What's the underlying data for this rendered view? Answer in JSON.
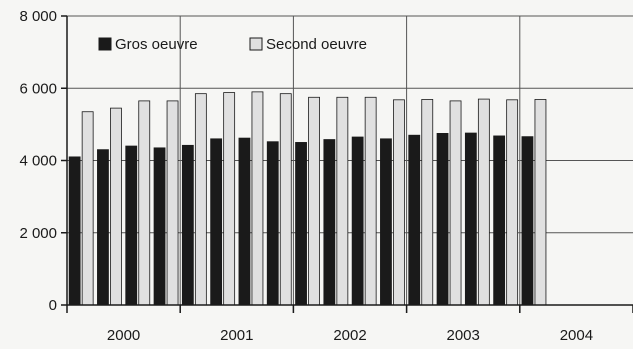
{
  "chart_data": {
    "type": "bar",
    "title": "",
    "xlabel": "",
    "ylabel": "",
    "ylim": [
      0,
      8000
    ],
    "yticks": [
      0,
      2000,
      4000,
      6000,
      8000
    ],
    "ytick_labels": [
      "0",
      "2 000",
      "4 000",
      "6 000",
      "8 000"
    ],
    "grid": true,
    "legend_position": "top-left",
    "quarters_per_year": 4,
    "year_labels": [
      "2000",
      "2001",
      "2002",
      "2003",
      "2004"
    ],
    "series": [
      {
        "name": "Gros oeuvre",
        "color": "#1a1a1a",
        "values": [
          4100,
          4300,
          4400,
          4350,
          4420,
          4600,
          4620,
          4520,
          4500,
          4580,
          4650,
          4600,
          4700,
          4750,
          4760,
          4680,
          4660
        ]
      },
      {
        "name": "Second oeuvre",
        "color": "#e0e0e0",
        "values": [
          5350,
          5450,
          5650,
          5650,
          5850,
          5880,
          5900,
          5850,
          5750,
          5750,
          5750,
          5680,
          5690,
          5650,
          5700,
          5680,
          5690
        ]
      }
    ]
  }
}
